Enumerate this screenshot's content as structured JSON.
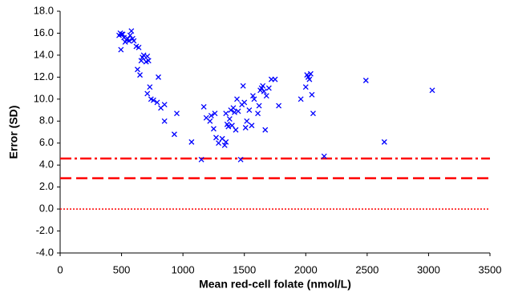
{
  "chart_data": {
    "type": "scatter",
    "x_label": "Mean red-cell folate (nmol/L)",
    "y_label": "Error (SD)",
    "marker": "x",
    "color": "#0000ff",
    "x": [
      490,
      500,
      480,
      510,
      495,
      520,
      530,
      540,
      550,
      560,
      570,
      580,
      590,
      600,
      620,
      640,
      630,
      650,
      660,
      670,
      680,
      700,
      710,
      720,
      710,
      730,
      740,
      760,
      790,
      800,
      820,
      850,
      850,
      930,
      950,
      1070,
      1150,
      1170,
      1190,
      1220,
      1230,
      1250,
      1260,
      1270,
      1290,
      1320,
      1340,
      1350,
      1360,
      1350,
      1370,
      1380,
      1390,
      1400,
      1410,
      1420,
      1430,
      1440,
      1450,
      1470,
      1480,
      1490,
      1500,
      1510,
      1520,
      1540,
      1560,
      1570,
      1580,
      1610,
      1620,
      1630,
      1640,
      1650,
      1660,
      1670,
      1680,
      1700,
      1720,
      1750,
      1780,
      1960,
      2000,
      2010,
      2020,
      2030,
      2040,
      2050,
      2060,
      2150,
      2490,
      2640,
      3030
    ],
    "values": [
      16.0,
      15.9,
      15.8,
      15.9,
      14.5,
      15.6,
      15.2,
      15.4,
      15.5,
      15.3,
      15.8,
      16.2,
      15.5,
      15.3,
      14.8,
      14.7,
      12.7,
      12.2,
      13.5,
      13.8,
      14.0,
      13.4,
      13.9,
      13.5,
      10.5,
      11.1,
      10.0,
      9.9,
      9.7,
      12.0,
      9.2,
      9.5,
      8.0,
      6.8,
      8.7,
      6.1,
      4.5,
      9.3,
      8.3,
      8.0,
      8.5,
      7.3,
      8.7,
      6.5,
      6.0,
      6.4,
      5.8,
      6.1,
      7.7,
      8.7,
      7.5,
      8.2,
      9.0,
      7.6,
      9.2,
      8.8,
      7.2,
      10.0,
      8.9,
      4.5,
      9.5,
      11.2,
      9.7,
      7.4,
      8.0,
      9.0,
      7.6,
      10.3,
      10.0,
      8.7,
      9.4,
      10.8,
      11.0,
      11.2,
      10.7,
      7.2,
      10.3,
      11.0,
      11.8,
      11.8,
      9.4,
      10.0,
      11.1,
      12.2,
      12.0,
      11.8,
      12.3,
      10.4,
      8.7,
      4.8,
      11.7,
      6.1,
      10.8
    ],
    "reference_lines": [
      {
        "value": 4.6,
        "style": "dashdot",
        "color": "#ff0000"
      },
      {
        "value": 2.8,
        "style": "dashed",
        "color": "#ff0000"
      },
      {
        "value": 0,
        "style": "dotted",
        "color": "#ff0000"
      }
    ],
    "xlim": [
      0,
      3500
    ],
    "xticks": [
      0,
      500,
      1000,
      1500,
      2000,
      2500,
      3000,
      3500
    ],
    "ylim": [
      -4,
      18
    ],
    "yticks": [
      {
        "value": -4,
        "label": "-4.0"
      },
      {
        "value": -2,
        "label": "-2.0"
      },
      {
        "value": 0,
        "label": "0.0"
      },
      {
        "value": 2,
        "label": "2.0"
      },
      {
        "value": 4,
        "label": "4.0"
      },
      {
        "value": 6,
        "label": "6.0"
      },
      {
        "value": 8,
        "label": "8.0"
      },
      {
        "value": 10,
        "label": "10.0"
      },
      {
        "value": 12,
        "label": "12.0"
      },
      {
        "value": 14,
        "label": "14.0"
      },
      {
        "value": 16,
        "label": "16.0"
      },
      {
        "value": 18,
        "label": "18.0"
      }
    ]
  }
}
